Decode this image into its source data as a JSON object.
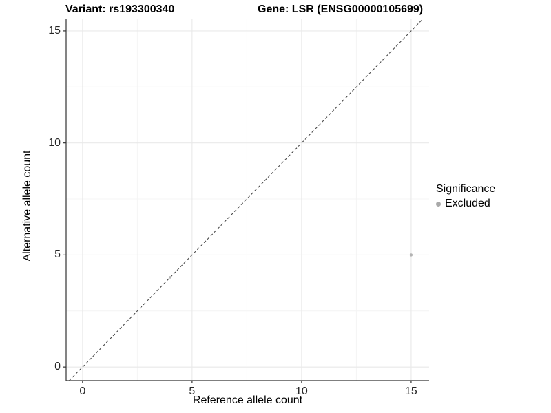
{
  "chart_data": {
    "type": "scatter",
    "title_left": "Variant: rs193300340",
    "title_right": "Gene: LSR (ENSG00000105699)",
    "xlabel": "Reference allele count",
    "ylabel": "Alternative allele count",
    "x_ticks": [
      0,
      5,
      10,
      15
    ],
    "y_ticks": [
      0,
      5,
      10,
      15
    ],
    "x_minor": [
      2.5,
      7.5,
      12.5
    ],
    "y_minor": [
      2.5,
      7.5,
      12.5
    ],
    "xlim": [
      -0.75,
      15.82
    ],
    "ylim": [
      -0.61,
      15.52
    ],
    "grid": "major+minor",
    "points": [
      {
        "x": 4,
        "y": 4,
        "series": "Excluded",
        "r": 1.8
      },
      {
        "x": 15,
        "y": 5,
        "series": "Excluded",
        "r": 2.2
      }
    ],
    "identity_line": {
      "style": "dashed",
      "from": -0.61,
      "to": 15.52
    },
    "legend": {
      "title": "Significance",
      "position": "right",
      "items": [
        {
          "label": "Excluded",
          "color": "#a9a9a9"
        }
      ]
    },
    "colors": {
      "background": "#ffffff",
      "point": "#b3b3b3",
      "grid_major": "#e9e9e9",
      "grid_minor": "#f4f4f4",
      "axis_line": "#333333",
      "tick_mark": "#333333",
      "identity_line": "#4a4a4a"
    }
  }
}
